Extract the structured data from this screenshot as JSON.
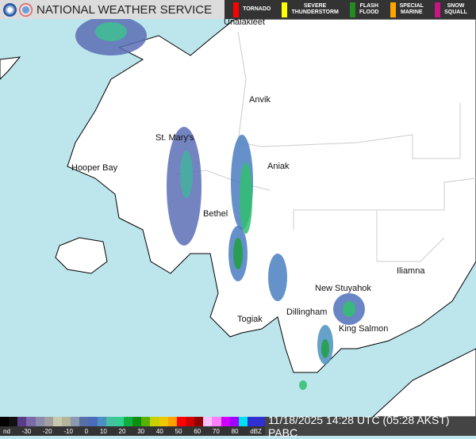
{
  "header": {
    "title": "NATIONAL WEATHER SERVICE",
    "warnings": [
      {
        "label": "TORNADO",
        "color": "#ff0000"
      },
      {
        "label": "SEVERE\nTHUNDERSTORM",
        "color": "#ffff00"
      },
      {
        "label": "FLASH\nFLOOD",
        "color": "#228b22"
      },
      {
        "label": "SPECIAL\nMARINE",
        "color": "#ffa500"
      },
      {
        "label": "SNOW\nSQUALL",
        "color": "#c71585"
      }
    ]
  },
  "map": {
    "water_color": "#bde5ec",
    "land_color": "#ffffff",
    "cities": [
      "Unalakleet",
      "Anvik",
      "St. Mary's",
      "Hooper Bay",
      "Aniak",
      "Bethel",
      "Iliamna",
      "New Stuyahok",
      "Dillingham",
      "Togiak",
      "King Salmon"
    ]
  },
  "legend": {
    "ticks": [
      "nd",
      "-30",
      "-20",
      "-10",
      "0",
      "10",
      "20",
      "30",
      "40",
      "50",
      "60",
      "70",
      "80",
      "dBZ"
    ],
    "colors": [
      "#000",
      "#111",
      "#5a3d8a",
      "#7a6aa8",
      "#8c8cae",
      "#a0a0a0",
      "#c8c8b0",
      "#b4b49a",
      "#8a98b0",
      "#5870a8",
      "#4b6cb8",
      "#4a90c0",
      "#45c0a0",
      "#30d090",
      "#10b040",
      "#0a8f10",
      "#5ab000",
      "#c8d000",
      "#f0c800",
      "#ffa000",
      "#ff0000",
      "#d00000",
      "#900000",
      "#ffc0ff",
      "#ff80ff",
      "#d000ff",
      "#a000ff",
      "#00e0f0",
      "#3030d0",
      "#3030d0"
    ]
  },
  "timestamp": "11/18/2025 14:28 UTC (05:28 AKST)  PABC"
}
